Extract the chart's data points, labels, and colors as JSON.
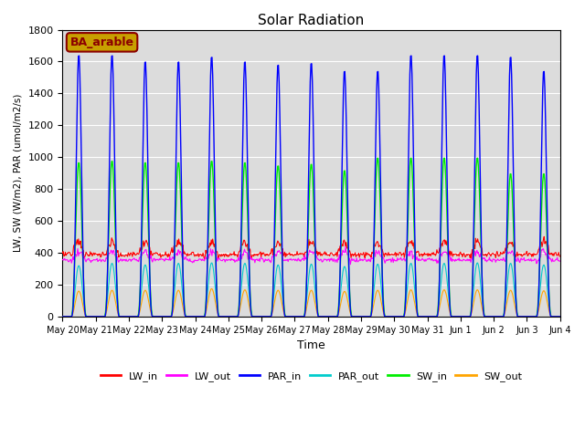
{
  "title": "Solar Radiation",
  "xlabel": "Time",
  "ylabel": "LW, SW (W/m2), PAR (umol/m2/s)",
  "annotation": "BA_arable",
  "annotation_color": "#8B0000",
  "annotation_bg": "#C8A000",
  "ylim": [
    0,
    1800
  ],
  "colors": {
    "LW_in": "#FF0000",
    "LW_out": "#FF00FF",
    "PAR_in": "#0000FF",
    "PAR_out": "#00CCCC",
    "SW_in": "#00EE00",
    "SW_out": "#FFA500"
  },
  "background_color": "#DCDCDC",
  "grid_color": "#FFFFFF",
  "tick_label_dates": [
    "May 20",
    "May 21",
    "May 22",
    "May 23",
    "May 24",
    "May 25",
    "May 26",
    "May 27",
    "May 28",
    "May 29",
    "May 30",
    "May 31",
    "Jun 1",
    "Jun 2",
    "Jun 3",
    "Jun 4"
  ],
  "par_peaks": [
    1650,
    1650,
    1610,
    1610,
    1640,
    1610,
    1590,
    1600,
    1550,
    1550,
    1650,
    1650,
    1650,
    1640,
    1550
  ],
  "sw_peaks": [
    970,
    980,
    970,
    970,
    980,
    970,
    950,
    960,
    920,
    1000,
    1000,
    1000,
    1000,
    900,
    900
  ],
  "sw_out_peaks": [
    160,
    165,
    165,
    165,
    175,
    168,
    165,
    165,
    158,
    165,
    168,
    168,
    168,
    165,
    162
  ],
  "par_out_peaks": [
    320,
    335,
    325,
    335,
    338,
    335,
    325,
    330,
    315,
    330,
    335,
    335,
    338,
    335,
    325
  ],
  "lw_in_base": 390,
  "lw_out_base": 355,
  "figsize": [
    6.4,
    4.8
  ],
  "dpi": 100
}
